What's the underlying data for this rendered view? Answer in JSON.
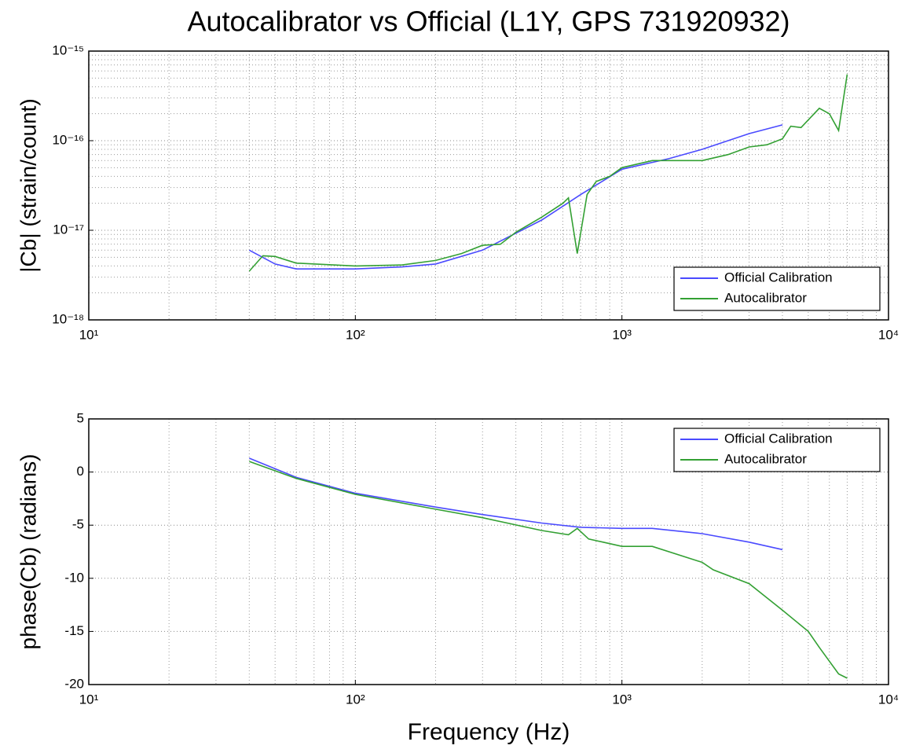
{
  "chart_data": [
    {
      "type": "line",
      "title": "Autocalibrator vs Official (L1Y, GPS 731920932)",
      "ylabel": "|Cb| (strain/count)",
      "xscale": "log",
      "yscale": "log",
      "grid": true,
      "legend": "lower right",
      "xlim": [
        10,
        10000
      ],
      "xticks": [
        {
          "value": 10,
          "label": "10¹"
        },
        {
          "value": 100,
          "label": "10²"
        },
        {
          "value": 1000,
          "label": "10³"
        },
        {
          "value": 10000,
          "label": "10⁴"
        }
      ],
      "ylim": [
        1e-18,
        1e-15
      ],
      "yticks": [
        {
          "value": 1e-18,
          "label": "10⁻¹⁸"
        },
        {
          "value": 1e-17,
          "label": "10⁻¹⁷"
        },
        {
          "value": 1e-16,
          "label": "10⁻¹⁶"
        },
        {
          "value": 1e-15,
          "label": "10⁻¹⁵"
        }
      ],
      "series": [
        {
          "name": "Official Calibration",
          "color": "#4a4aff",
          "x": [
            40,
            50,
            60,
            100,
            150,
            200,
            300,
            500,
            700,
            1000,
            1500,
            2000,
            3000,
            4000
          ],
          "values": [
            6e-18,
            4.2e-18,
            3.7e-18,
            3.7e-18,
            3.9e-18,
            4.2e-18,
            6e-18,
            1.3e-17,
            2.5e-17,
            4.8e-17,
            6.3e-17,
            8e-17,
            1.2e-16,
            1.5e-16
          ]
        },
        {
          "name": "Autocalibrator",
          "color": "#33a033",
          "x": [
            40,
            45,
            50,
            60,
            100,
            150,
            200,
            250,
            300,
            350,
            400,
            500,
            600,
            630,
            680,
            740,
            800,
            900,
            1000,
            1300,
            1500,
            2000,
            2500,
            3000,
            3500,
            4000,
            4300,
            4700,
            5500,
            6000,
            6500,
            7000
          ],
          "values": [
            3.5e-18,
            5.2e-18,
            5.1e-18,
            4.3e-18,
            4e-18,
            4.1e-18,
            4.6e-18,
            5.5e-18,
            6.8e-18,
            7e-18,
            9.5e-18,
            1.4e-17,
            2e-17,
            2.3e-17,
            5.5e-18,
            2.5e-17,
            3.5e-17,
            4e-17,
            5e-17,
            6e-17,
            6e-17,
            6e-17,
            7e-17,
            8.5e-17,
            9e-17,
            1.05e-16,
            1.45e-16,
            1.4e-16,
            2.3e-16,
            2e-16,
            1.3e-16,
            5.5e-16
          ]
        }
      ]
    },
    {
      "type": "line",
      "ylabel": "phase(Cb) (radians)",
      "xlabel": "Frequency (Hz)",
      "xscale": "log",
      "grid": true,
      "legend": "upper right",
      "xlim": [
        10,
        10000
      ],
      "xticks": [
        {
          "value": 10,
          "label": "10¹"
        },
        {
          "value": 100,
          "label": "10²"
        },
        {
          "value": 1000,
          "label": "10³"
        },
        {
          "value": 10000,
          "label": "10⁴"
        }
      ],
      "ylim": [
        -20,
        5
      ],
      "yticks": [
        -20,
        -15,
        -10,
        -5,
        0,
        5
      ],
      "series": [
        {
          "name": "Official Calibration",
          "color": "#4a4aff",
          "x": [
            40,
            60,
            100,
            200,
            300,
            500,
            700,
            1000,
            1300,
            2000,
            3000,
            4000
          ],
          "values": [
            1.3,
            -0.5,
            -2,
            -3.3,
            -4,
            -4.8,
            -5.2,
            -5.3,
            -5.3,
            -5.8,
            -6.6,
            -7.3
          ]
        },
        {
          "name": "Autocalibrator",
          "color": "#33a033",
          "x": [
            40,
            60,
            100,
            200,
            300,
            500,
            630,
            680,
            750,
            850,
            1000,
            1300,
            2000,
            2200,
            3000,
            4000,
            5000,
            5500,
            6500,
            7000
          ],
          "values": [
            1.0,
            -0.6,
            -2.1,
            -3.5,
            -4.3,
            -5.5,
            -5.9,
            -5.3,
            -6.3,
            -6.6,
            -7,
            -7,
            -8.5,
            -9.2,
            -10.5,
            -13,
            -15,
            -16.5,
            -19,
            -19.4
          ]
        }
      ]
    }
  ]
}
